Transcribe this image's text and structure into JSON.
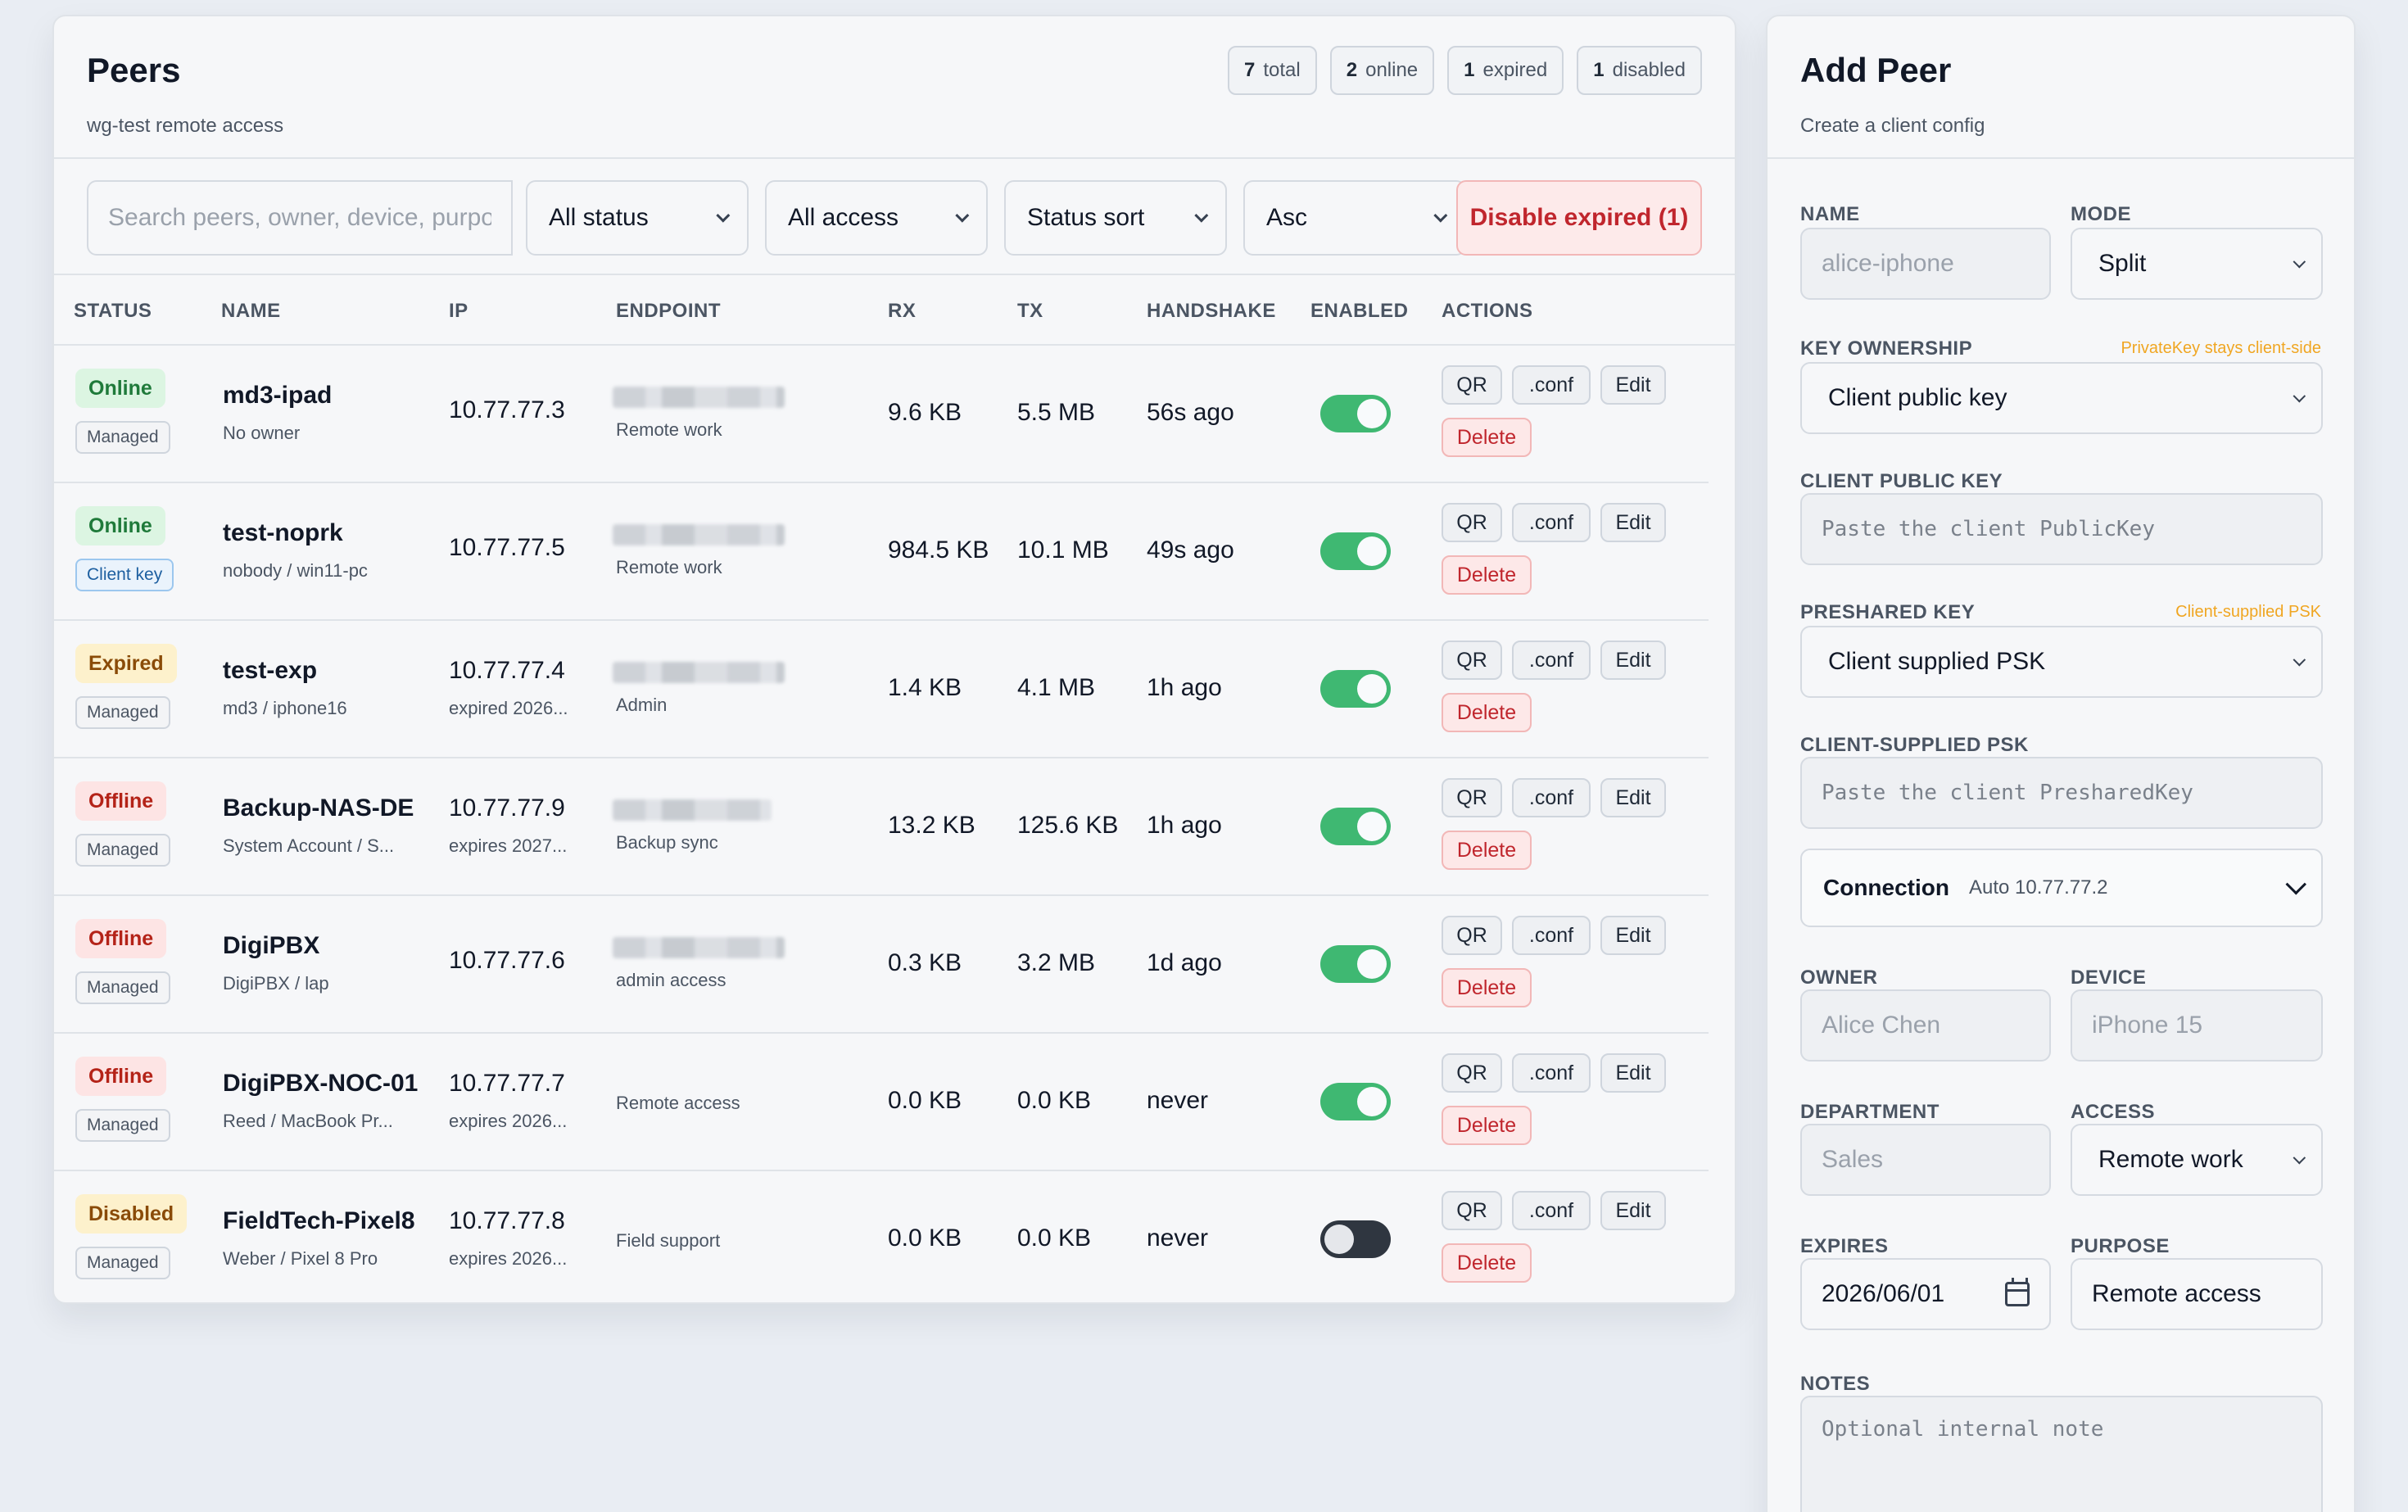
{
  "peers": {
    "title": "Peers",
    "subtitle": "wg-test remote access",
    "counts": [
      {
        "num": "7",
        "label": "total"
      },
      {
        "num": "2",
        "label": "online"
      },
      {
        "num": "1",
        "label": "expired"
      },
      {
        "num": "1",
        "label": "disabled"
      }
    ],
    "filters": {
      "search_placeholder": "Search peers, owner, device, purpose",
      "status": "All status",
      "access": "All access",
      "sort": "Status sort",
      "order": "Asc",
      "disable_expired": "Disable expired (1)"
    },
    "columns": [
      "STATUS",
      "NAME",
      "IP",
      "ENDPOINT",
      "RX",
      "TX",
      "HANDSHAKE",
      "ENABLED",
      "ACTIONS"
    ],
    "actions": {
      "qr": "QR",
      "conf": ".conf",
      "edit": "Edit",
      "delete": "Delete"
    },
    "rows": [
      {
        "status": "Online",
        "kind": "online",
        "tag": "Managed",
        "tag_kind": "managed",
        "name": "md3-ipad",
        "owner": "No owner",
        "ip": "10.77.77.3",
        "ip_sub": "",
        "endpoint_blur": true,
        "endpoint_note": "Remote work",
        "rx": "9.6 KB",
        "tx": "5.5 MB",
        "handshake": "56s ago",
        "enabled": true
      },
      {
        "status": "Online",
        "kind": "online",
        "tag": "Client key",
        "tag_kind": "client",
        "name": "test-noprk",
        "owner": "nobody / win11-pc",
        "ip": "10.77.77.5",
        "ip_sub": "",
        "endpoint_blur": true,
        "endpoint_note": "Remote work",
        "rx": "984.5 KB",
        "tx": "10.1 MB",
        "handshake": "49s ago",
        "enabled": true
      },
      {
        "status": "Expired",
        "kind": "expired",
        "tag": "Managed",
        "tag_kind": "managed",
        "name": "test-exp",
        "owner": "md3 / iphone16",
        "ip": "10.77.77.4",
        "ip_sub": "expired 2026...",
        "endpoint_blur": true,
        "endpoint_note": "Admin",
        "rx": "1.4 KB",
        "tx": "4.1 MB",
        "handshake": "1h ago",
        "enabled": true
      },
      {
        "status": "Offline",
        "kind": "offline",
        "tag": "Managed",
        "tag_kind": "managed",
        "name": "Backup-NAS-DE",
        "owner": "System Account / S...",
        "ip": "10.77.77.9",
        "ip_sub": "expires 2027...",
        "endpoint_blur": true,
        "endpoint_note": "Backup sync",
        "rx": "13.2 KB",
        "tx": "125.6 KB",
        "handshake": "1h ago",
        "enabled": true
      },
      {
        "status": "Offline",
        "kind": "offline",
        "tag": "Managed",
        "tag_kind": "managed",
        "name": "DigiPBX",
        "owner": "DigiPBX / lap",
        "ip": "10.77.77.6",
        "ip_sub": "",
        "endpoint_blur": true,
        "endpoint_note": "admin access",
        "rx": "0.3 KB",
        "tx": "3.2 MB",
        "handshake": "1d ago",
        "enabled": true
      },
      {
        "status": "Offline",
        "kind": "offline",
        "tag": "Managed",
        "tag_kind": "managed",
        "name": "DigiPBX-NOC-01",
        "owner": "Reed / MacBook Pr...",
        "ip": "10.77.77.7",
        "ip_sub": "expires 2026...",
        "endpoint_blur": false,
        "endpoint_note": "Remote access",
        "rx": "0.0 KB",
        "tx": "0.0 KB",
        "handshake": "never",
        "enabled": true
      },
      {
        "status": "Disabled",
        "kind": "disabled",
        "tag": "Managed",
        "tag_kind": "managed",
        "name": "FieldTech-Pixel8",
        "owner": "Weber / Pixel 8 Pro",
        "ip": "10.77.77.8",
        "ip_sub": "expires 2026...",
        "endpoint_blur": false,
        "endpoint_note": "Field support",
        "rx": "0.0 KB",
        "tx": "0.0 KB",
        "handshake": "never",
        "enabled": false
      }
    ]
  },
  "add_peer": {
    "title": "Add Peer",
    "subtitle": "Create a client config",
    "name_label": "NAME",
    "name_placeholder": "alice-iphone",
    "mode_label": "MODE",
    "mode_value": "Split",
    "key_ownership_label": "KEY OWNERSHIP",
    "key_ownership_hint": "PrivateKey stays client-side",
    "key_ownership_value": "Client public key",
    "client_public_key_label": "CLIENT PUBLIC KEY",
    "client_public_key_placeholder": "Paste the client PublicKey",
    "preshared_key_label": "PRESHARED KEY",
    "preshared_key_hint": "Client-supplied PSK",
    "preshared_key_value": "Client supplied PSK",
    "client_psk_label": "CLIENT-SUPPLIED PSK",
    "client_psk_placeholder": "Paste the client PresharedKey",
    "connection_label": "Connection",
    "connection_value": "Auto 10.77.77.2",
    "owner_label": "OWNER",
    "owner_placeholder": "Alice Chen",
    "device_label": "DEVICE",
    "device_placeholder": "iPhone 15",
    "department_label": "DEPARTMENT",
    "department_placeholder": "Sales",
    "access_label": "ACCESS",
    "access_value": "Remote work",
    "expires_label": "EXPIRES",
    "expires_value": "2026/06/01",
    "purpose_label": "PURPOSE",
    "purpose_value": "Remote access",
    "notes_label": "NOTES",
    "notes_placeholder": "Optional internal note"
  }
}
